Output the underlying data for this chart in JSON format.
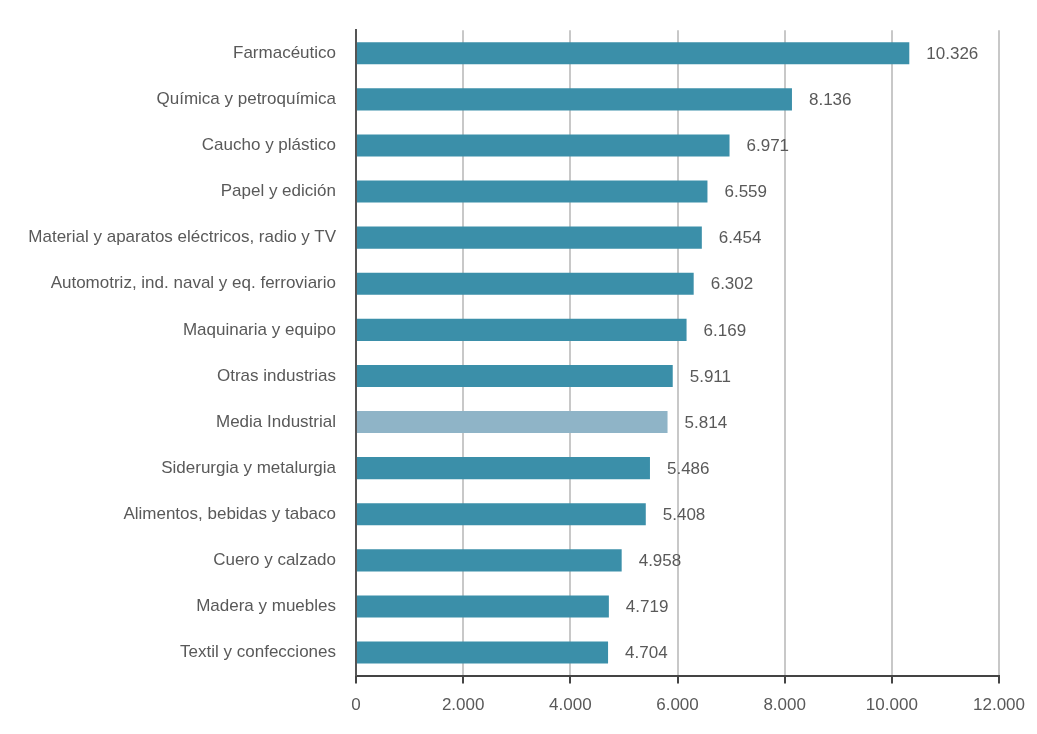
{
  "chart_data": {
    "type": "bar",
    "orientation": "horizontal",
    "categories": [
      "Farmacéutico",
      "Química y petroquímica",
      "Caucho y plástico",
      "Papel y edición",
      "Material y aparatos eléctricos, radio y TV",
      "Automotriz, ind. naval y eq. ferroviario",
      "Maquinaria y equipo",
      "Otras industrias",
      "Media Industrial",
      "Siderurgia y metalurgia",
      "Alimentos, bebidas y tabaco",
      "Cuero y calzado",
      "Madera y muebles",
      "Textil y confecciones"
    ],
    "values": [
      10326,
      8136,
      6971,
      6559,
      6454,
      6302,
      6169,
      5911,
      5814,
      5486,
      5408,
      4958,
      4719,
      4704
    ],
    "colors": [
      "#3b8fa9",
      "#3b8fa9",
      "#3b8fa9",
      "#3b8fa9",
      "#3b8fa9",
      "#3b8fa9",
      "#3b8fa9",
      "#3b8fa9",
      "#8fb4c7",
      "#3b8fa9",
      "#3b8fa9",
      "#3b8fa9",
      "#3b8fa9",
      "#3b8fa9"
    ],
    "value_labels": [
      "10.326",
      "8.136",
      "6.971",
      "6.559",
      "6.454",
      "6.302",
      "6.169",
      "5.911",
      "5.814",
      "5.486",
      "5.408",
      "4.958",
      "4.719",
      "4.704"
    ],
    "xlim": [
      0,
      12000
    ],
    "xticks": [
      0,
      {
        "value": 2000,
        "label": "2.000"
      },
      {
        "value": 4000,
        "label": "4.000"
      },
      {
        "value": 6000,
        "label": "6.000"
      },
      {
        "value": 8000,
        "label": "8.000"
      },
      {
        "value": 10000,
        "label": "10.000"
      },
      {
        "value": 12000,
        "label": "12.000"
      }
    ],
    "grid": "x"
  }
}
